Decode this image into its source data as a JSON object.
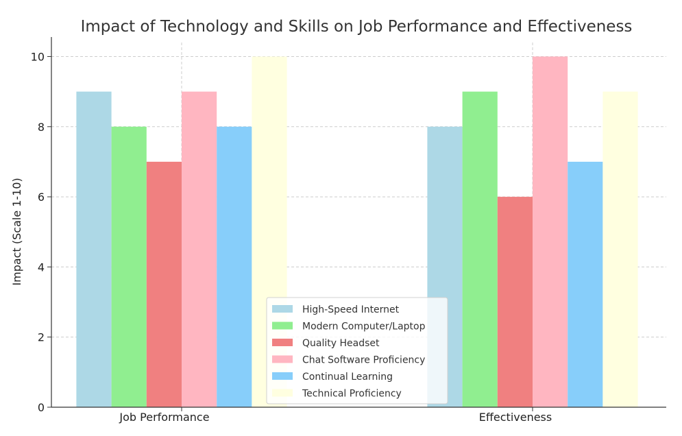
{
  "chart_data": {
    "type": "bar",
    "title": "Impact of Technology and Skills on Job Performance and Effectiveness",
    "xlabel": "",
    "ylabel": "Impact (Scale 1-10)",
    "categories": [
      "Job Performance",
      "Effectiveness"
    ],
    "ylim": [
      0,
      10.4
    ],
    "yticks": [
      0,
      2,
      4,
      6,
      8,
      10
    ],
    "grid": true,
    "legend_position": "bottom-center",
    "series": [
      {
        "name": "High-Speed Internet",
        "color": "#add8e6",
        "values": [
          9,
          8
        ]
      },
      {
        "name": "Modern Computer/Laptop",
        "color": "#90ee90",
        "values": [
          8,
          9
        ]
      },
      {
        "name": "Quality Headset",
        "color": "#f08080",
        "values": [
          7,
          6
        ]
      },
      {
        "name": "Chat Software Proficiency",
        "color": "#ffb6c1",
        "values": [
          9,
          10
        ]
      },
      {
        "name": "Continual Learning",
        "color": "#87cefa",
        "values": [
          8,
          7
        ]
      },
      {
        "name": "Technical Proficiency",
        "color": "#ffffe0",
        "values": [
          10,
          9
        ]
      }
    ]
  }
}
